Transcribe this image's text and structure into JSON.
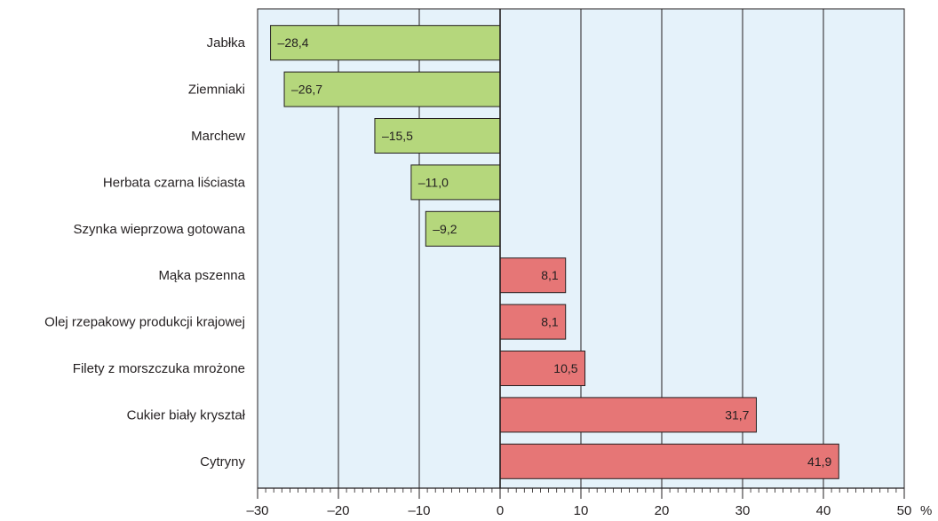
{
  "chart_data": {
    "type": "bar",
    "orientation": "horizontal",
    "categories": [
      "Jabłka",
      "Ziemniaki",
      "Marchew",
      "Herbata czarna liściasta",
      "Szynka wieprzowa gotowana",
      "Mąka pszenna",
      "Olej rzepakowy produkcji krajowej",
      "Filety z morszczuka mrożone",
      "Cukier biały kryształ",
      "Cytryny"
    ],
    "values": [
      -28.4,
      -26.7,
      -15.5,
      -11.0,
      -9.2,
      8.1,
      8.1,
      10.5,
      31.7,
      41.9
    ],
    "value_labels": [
      "–28,4",
      "–26,7",
      "–15,5",
      "–11,0",
      "–9,2",
      "8,1",
      "8,1",
      "10,5",
      "31,7",
      "41,9"
    ],
    "xlim": [
      -30,
      50
    ],
    "x_ticks": [
      -30,
      -20,
      -10,
      0,
      10,
      20,
      30,
      40,
      50
    ],
    "x_tick_labels": [
      "–30",
      "–20",
      "–10",
      "0",
      "10",
      "20",
      "30",
      "40",
      "50"
    ],
    "x_unit": "%",
    "grid": "vertical",
    "colors": {
      "negative": "#b5d77c",
      "positive": "#e67676",
      "plot_background": "#e5f2fa",
      "grid": "#231f20",
      "bar_border": "#231f20"
    }
  }
}
